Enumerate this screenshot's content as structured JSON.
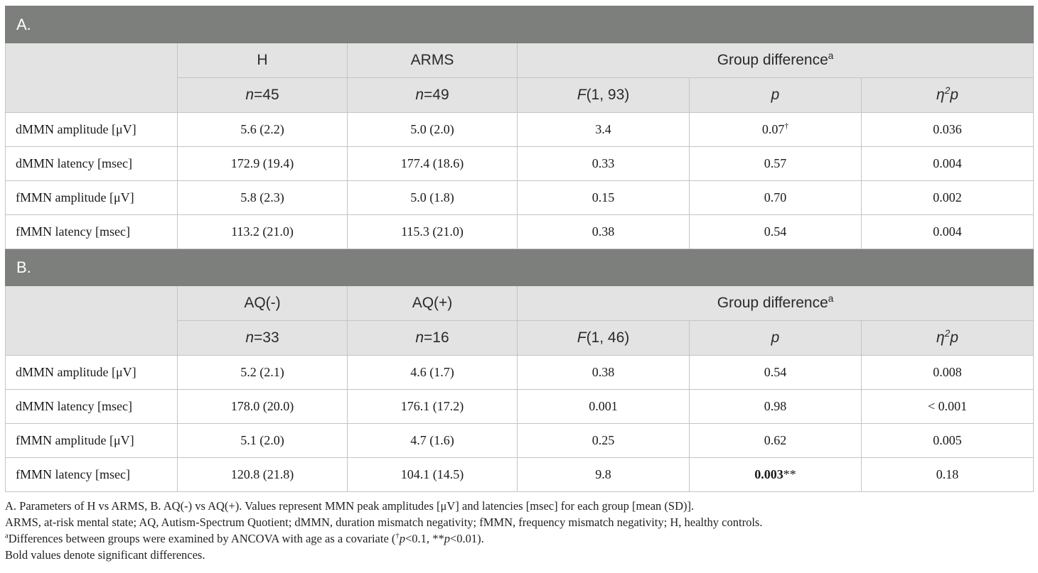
{
  "sections": [
    {
      "title": "A.",
      "group1": "H",
      "group2": "ARMS",
      "diff_label": "Group difference",
      "diff_sup": "a",
      "n1": "45",
      "n2": "49",
      "stat_label": "F",
      "stat_df": "(1, 93)",
      "p_label": "p",
      "eta_label": "η",
      "eta_sup": "2",
      "eta_sub": "p",
      "rows": [
        {
          "label": "dMMN amplitude [μV]",
          "g1": "5.6 (2.2)",
          "g2": "5.0 (2.0)",
          "f": "3.4",
          "p": "0.07",
          "p_mark": "†",
          "eta": "0.036"
        },
        {
          "label": "dMMN latency [msec]",
          "g1": "172.9 (19.4)",
          "g2": "177.4 (18.6)",
          "f": "0.33",
          "p": "0.57",
          "p_mark": "",
          "eta": "0.004"
        },
        {
          "label": "fMMN amplitude [μV]",
          "g1": "5.8 (2.3)",
          "g2": "5.0 (1.8)",
          "f": "0.15",
          "p": "0.70",
          "p_mark": "",
          "eta": "0.002"
        },
        {
          "label": "fMMN latency [msec]",
          "g1": "113.2 (21.0)",
          "g2": "115.3 (21.0)",
          "f": "0.38",
          "p": "0.54",
          "p_mark": "",
          "eta": "0.004"
        }
      ]
    },
    {
      "title": "B.",
      "group1": "AQ(-)",
      "group2": "AQ(+)",
      "diff_label": "Group difference",
      "diff_sup": "a",
      "n1": "33",
      "n2": "16",
      "stat_label": "F",
      "stat_df": "(1, 46)",
      "p_label": "p",
      "eta_label": "η",
      "eta_sup": "2",
      "eta_sub": "p",
      "rows": [
        {
          "label": "dMMN amplitude [μV]",
          "g1": "5.2 (2.1)",
          "g2": "4.6 (1.7)",
          "f": "0.38",
          "p": "0.54",
          "p_mark": "",
          "eta": "0.008"
        },
        {
          "label": "dMMN latency [msec]",
          "g1": "178.0 (20.0)",
          "g2": "176.1 (17.2)",
          "f": "0.001",
          "p": "0.98",
          "p_mark": "",
          "eta": "< 0.001"
        },
        {
          "label": "fMMN amplitude [μV]",
          "g1": "5.1 (2.0)",
          "g2": "4.7 (1.6)",
          "f": "0.25",
          "p": "0.62",
          "p_mark": "",
          "eta": "0.005"
        },
        {
          "label": "fMMN latency [msec]",
          "g1": "120.8 (21.8)",
          "g2": "104.1 (14.5)",
          "f": "9.8",
          "p": "0.003",
          "p_mark": "**",
          "p_bold": true,
          "eta": "0.18"
        }
      ]
    }
  ],
  "n_label": "n",
  "footnotes": {
    "line1": "A. Parameters of H vs ARMS, B. AQ(-) vs AQ(+). Values represent MMN peak amplitudes [μV] and latencies [msec] for each group [mean (SD)].",
    "line2": "ARMS, at-risk mental state; AQ, Autism-Spectrum Quotient; dMMN, duration mismatch negativity; fMMN, frequency mismatch negativity; H, healthy controls.",
    "line3_sup": "a",
    "line3_pre": "Differences between groups were examined by ANCOVA with age as a covariate (",
    "line3_dagger": "†",
    "line3_p1": "p",
    "line3_t1": "<0.1, ",
    "line3_stars": "**",
    "line3_p2": "p",
    "line3_t2": "<0.01).",
    "line4": "Bold values denote significant differences."
  }
}
